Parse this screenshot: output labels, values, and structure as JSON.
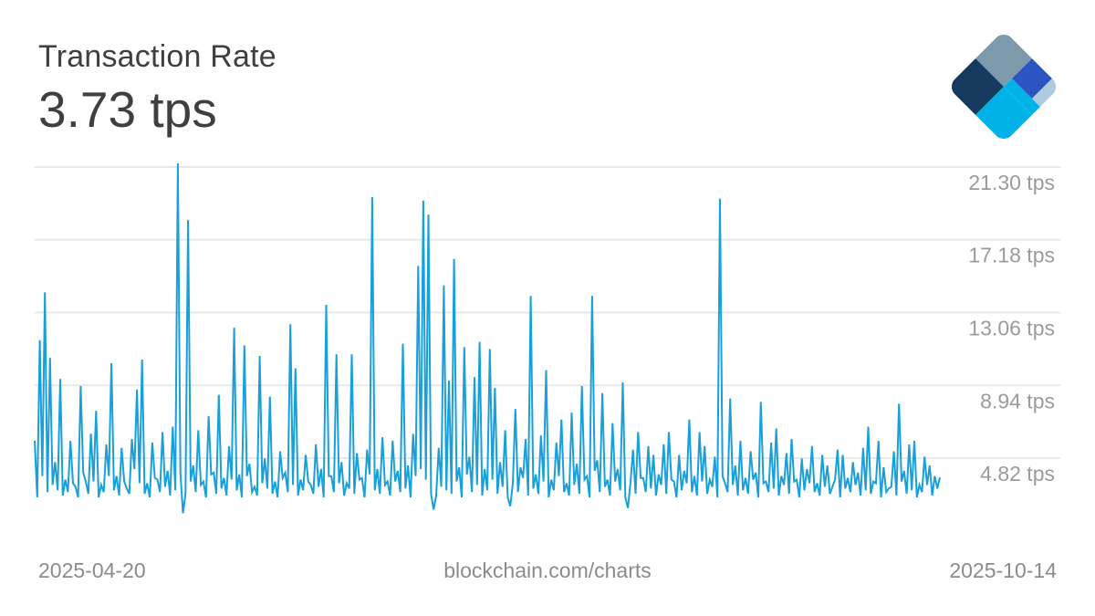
{
  "header": {
    "title": "Transaction Rate",
    "current_value": "3.73 tps"
  },
  "footer": {
    "start_date": "2025-04-20",
    "source": "blockchain.com/charts",
    "end_date": "2025-10-14"
  },
  "colors": {
    "line": "#199fda",
    "grid": "#e8e8e8",
    "title_text": "#3f3f3f",
    "axis_text": "#9b9b9b",
    "footer_text": "#8b8b8b",
    "logo_navy": "#15395f",
    "logo_slate": "#7d99ac",
    "logo_royal": "#2c55c2",
    "logo_cyan": "#00b2e7",
    "logo_lightblue": "#aecbdf"
  },
  "chart_data": {
    "type": "line",
    "title": "Transaction Rate",
    "ylabel": "tps",
    "unit": "tps",
    "current_value": 3.73,
    "x_start": "2025-04-20",
    "x_end": "2025-10-14",
    "frequency": "sub-daily samples between start and end dates",
    "legend": "none",
    "grid": "horizontal only",
    "y_axis_side": "right",
    "y_ticks": [
      4.82,
      8.94,
      13.06,
      17.18,
      21.3
    ],
    "y_tick_labels": [
      "4.82 tps",
      "8.94 tps",
      "13.06 tps",
      "17.18 tps",
      "21.30 tps"
    ],
    "ylim_visible": [
      1.5,
      22.5
    ],
    "values": [
      5.8,
      2.6,
      11.5,
      3.8,
      14.2,
      2.9,
      10.5,
      3.3,
      4.6,
      3.0,
      9.3,
      2.7,
      3.6,
      2.9,
      5.8,
      3.4,
      3.2,
      2.6,
      8.9,
      4.0,
      3.5,
      2.8,
      6.2,
      3.5,
      7.5,
      2.6,
      3.3,
      2.9,
      5.6,
      3.8,
      10.2,
      3.0,
      3.8,
      2.7,
      5.4,
      3.5,
      3.1,
      2.8,
      5.9,
      4.2,
      8.7,
      3.4,
      10.4,
      2.8,
      3.4,
      2.6,
      5.7,
      3.7,
      3.6,
      2.9,
      6.3,
      3.2,
      4.1,
      2.7,
      6.6,
      3.0,
      21.5,
      4.0,
      1.7,
      2.8,
      18.3,
      3.5,
      4.4,
      2.9,
      6.4,
      3.3,
      3.5,
      2.6,
      7.2,
      3.9,
      4.0,
      2.8,
      8.4,
      3.1,
      3.7,
      2.7,
      5.5,
      3.6,
      12.2,
      3.0,
      3.9,
      2.6,
      11.2,
      3.8,
      4.5,
      2.9,
      3.2,
      2.7,
      10.6,
      3.4,
      4.8,
      3.1,
      8.3,
      2.8,
      3.5,
      2.6,
      5.2,
      3.7,
      4.0,
      2.9,
      12.4,
      3.3,
      9.9,
      2.7,
      3.6,
      3.0,
      5.0,
      3.5,
      3.3,
      2.8,
      5.6,
      3.2,
      4.2,
      2.6,
      13.5,
      3.8,
      3.8,
      2.9,
      10.7,
      3.4,
      4.6,
      2.7,
      3.4,
      3.1,
      10.7,
      2.8,
      5.1,
      3.6,
      3.7,
      2.6,
      5.3,
      3.9,
      19.6,
      3.0,
      4.2,
      2.8,
      6.0,
      3.3,
      3.5,
      2.7,
      5.8,
      3.5,
      4.1,
      2.9,
      11.3,
      3.1,
      4.4,
      2.6,
      6.2,
      3.8,
      15.7,
      4.2,
      19.4,
      3.6,
      18.6,
      2.8,
      1.9,
      2.7,
      5.4,
      3.2,
      14.6,
      3.0,
      9.2,
      2.8,
      16.1,
      3.5,
      4.3,
      2.6,
      11.1,
      3.9,
      4.9,
      2.9,
      9.4,
      3.3,
      11.4,
      2.7,
      4.2,
      3.0,
      11.0,
      3.6,
      8.8,
      2.8,
      4.6,
      3.2,
      6.4,
      2.6,
      2.1,
      3.4,
      7.6,
      2.9,
      4.3,
      3.7,
      5.9,
      2.7,
      14.0,
      3.1,
      3.9,
      2.8,
      6.1,
      3.5,
      9.8,
      2.6,
      3.6,
      3.0,
      5.7,
      3.8,
      7.0,
      2.9,
      3.4,
      2.7,
      7.4,
      3.3,
      4.5,
      2.8,
      8.9,
      3.6,
      3.8,
      2.6,
      14.0,
      4.1,
      4.7,
      2.9,
      8.5,
      3.2,
      3.6,
      2.7,
      6.8,
      3.5,
      4.2,
      3.0,
      9.1,
      2.6,
      2.0,
      3.4,
      5.3,
      2.8,
      6.3,
      3.7,
      3.7,
      2.9,
      5.5,
      3.1,
      5.0,
      2.7,
      3.9,
      3.3,
      5.6,
      2.8,
      6.3,
      3.6,
      3.5,
      2.6,
      5.0,
      3.0,
      4.1,
      3.4,
      7.0,
      2.9,
      3.8,
      2.7,
      6.3,
      3.5,
      5.5,
      2.8,
      3.6,
      3.2,
      4.9,
      2.6,
      19.5,
      3.8,
      3.4,
      2.9,
      8.2,
      3.3,
      4.4,
      2.7,
      5.8,
      3.0,
      3.7,
      2.8,
      5.2,
      3.6,
      4.0,
      2.6,
      8.0,
      3.4,
      3.5,
      2.9,
      5.7,
      3.1,
      6.5,
      2.7,
      3.8,
      3.3,
      5.1,
      2.8,
      5.9,
      3.5,
      3.6,
      2.6,
      4.8,
      3.0,
      4.2,
      3.4,
      5.5,
      2.9,
      3.4,
      2.7,
      5.0,
      3.2,
      4.4,
      2.8,
      3.2,
      3.6,
      5.3,
      2.6,
      5.0,
      3.1,
      3.7,
      2.9,
      4.6,
      3.3,
      4.0,
      2.7,
      5.4,
      3.0,
      6.6,
      2.8,
      3.5,
      3.4,
      5.8,
      2.6,
      4.3,
      2.9,
      3.1,
      3.2,
      5.2,
      2.7,
      7.9,
      3.5,
      4.1,
      2.8,
      5.6,
      3.0,
      5.8,
      2.6,
      3.3,
      2.9,
      4.9,
      3.3,
      4.4,
      2.7,
      3.8,
      3.1,
      3.73
    ]
  }
}
